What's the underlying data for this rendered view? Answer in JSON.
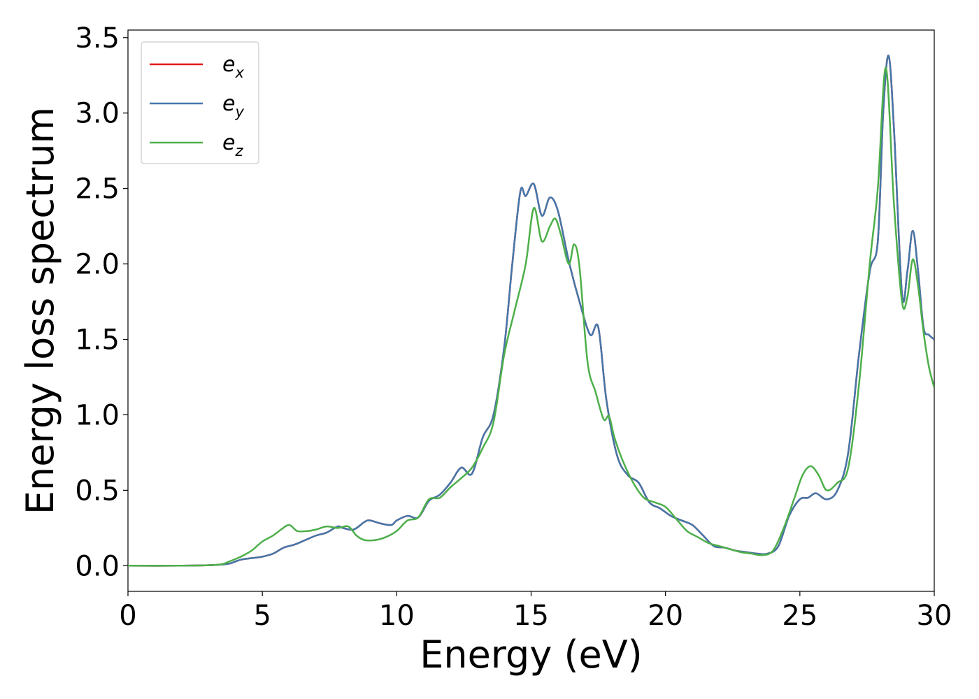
{
  "chart_data": {
    "type": "line",
    "title": "",
    "xlabel": "Energy (eV)",
    "ylabel": "Energy loss spectrum",
    "xlim": [
      0,
      30
    ],
    "ylim": [
      -0.17,
      3.55
    ],
    "xticks": [
      0,
      5,
      10,
      15,
      20,
      25,
      30
    ],
    "yticks": [
      0.0,
      0.5,
      1.0,
      1.5,
      2.0,
      2.5,
      3.0,
      3.5
    ],
    "xtick_labels": [
      "0",
      "5",
      "10",
      "15",
      "20",
      "25",
      "30"
    ],
    "ytick_labels": [
      "0.0",
      "0.5",
      "1.0",
      "1.5",
      "2.0",
      "2.5",
      "3.0",
      "3.5"
    ],
    "grid": false,
    "legend_position": "upper-left",
    "series": [
      {
        "name": "e",
        "subscript": "x",
        "color": "#e41a1c",
        "x": [
          0,
          2,
          3,
          3.5,
          3.8,
          4.2,
          4.6,
          5.0,
          5.4,
          5.8,
          6.2,
          6.6,
          7.0,
          7.4,
          7.8,
          8.0,
          8.4,
          8.8,
          9.0,
          9.4,
          9.8,
          10.0,
          10.4,
          10.8,
          11.2,
          11.6,
          12.0,
          12.4,
          12.8,
          13.2,
          13.6,
          14.0,
          14.3,
          14.6,
          14.8,
          15.1,
          15.4,
          15.7,
          16.0,
          16.4,
          16.8,
          17.2,
          17.5,
          17.8,
          18.2,
          18.6,
          19.0,
          19.4,
          19.8,
          20.2,
          20.6,
          21.0,
          21.4,
          21.8,
          22.2,
          22.6,
          23.0,
          23.4,
          23.8,
          24.2,
          24.6,
          25.0,
          25.3,
          25.6,
          26.0,
          26.4,
          26.8,
          27.2,
          27.6,
          27.9,
          28.1,
          28.3,
          28.5,
          28.8,
          29.0,
          29.2,
          29.4,
          29.6,
          29.8,
          30.0
        ],
        "values": [
          0.0,
          0.0,
          0.003,
          0.008,
          0.015,
          0.04,
          0.05,
          0.06,
          0.08,
          0.12,
          0.14,
          0.17,
          0.2,
          0.22,
          0.26,
          0.25,
          0.24,
          0.29,
          0.3,
          0.28,
          0.27,
          0.3,
          0.33,
          0.32,
          0.43,
          0.47,
          0.55,
          0.65,
          0.61,
          0.85,
          1.0,
          1.45,
          2.0,
          2.48,
          2.45,
          2.53,
          2.32,
          2.44,
          2.35,
          2.02,
          1.75,
          1.53,
          1.58,
          1.1,
          0.73,
          0.6,
          0.55,
          0.42,
          0.38,
          0.33,
          0.3,
          0.27,
          0.2,
          0.13,
          0.12,
          0.1,
          0.09,
          0.08,
          0.08,
          0.13,
          0.33,
          0.44,
          0.45,
          0.48,
          0.44,
          0.5,
          0.75,
          1.4,
          1.95,
          2.15,
          3.0,
          3.38,
          2.9,
          1.8,
          1.95,
          2.22,
          1.95,
          1.58,
          1.53,
          1.5
        ]
      },
      {
        "name": "e",
        "subscript": "y",
        "color": "#4477aa",
        "x": [
          0,
          2,
          3,
          3.5,
          3.8,
          4.2,
          4.6,
          5.0,
          5.4,
          5.8,
          6.2,
          6.6,
          7.0,
          7.4,
          7.8,
          8.0,
          8.4,
          8.8,
          9.0,
          9.4,
          9.8,
          10.0,
          10.4,
          10.8,
          11.2,
          11.6,
          12.0,
          12.4,
          12.8,
          13.2,
          13.6,
          14.0,
          14.3,
          14.6,
          14.8,
          15.1,
          15.4,
          15.7,
          16.0,
          16.4,
          16.8,
          17.2,
          17.5,
          17.8,
          18.2,
          18.6,
          19.0,
          19.4,
          19.8,
          20.2,
          20.6,
          21.0,
          21.4,
          21.8,
          22.2,
          22.6,
          23.0,
          23.4,
          23.8,
          24.2,
          24.6,
          25.0,
          25.3,
          25.6,
          26.0,
          26.4,
          26.8,
          27.2,
          27.6,
          27.9,
          28.1,
          28.3,
          28.5,
          28.8,
          29.0,
          29.2,
          29.4,
          29.6,
          29.8,
          30.0
        ],
        "values": [
          0.0,
          0.0,
          0.003,
          0.008,
          0.015,
          0.04,
          0.05,
          0.06,
          0.08,
          0.12,
          0.14,
          0.17,
          0.2,
          0.22,
          0.26,
          0.25,
          0.24,
          0.29,
          0.3,
          0.28,
          0.27,
          0.3,
          0.33,
          0.32,
          0.43,
          0.47,
          0.55,
          0.65,
          0.61,
          0.85,
          1.0,
          1.45,
          2.0,
          2.48,
          2.45,
          2.53,
          2.32,
          2.44,
          2.35,
          2.02,
          1.75,
          1.53,
          1.58,
          1.1,
          0.73,
          0.6,
          0.55,
          0.42,
          0.38,
          0.33,
          0.3,
          0.27,
          0.2,
          0.13,
          0.12,
          0.1,
          0.09,
          0.08,
          0.08,
          0.13,
          0.33,
          0.44,
          0.45,
          0.48,
          0.44,
          0.5,
          0.75,
          1.4,
          1.95,
          2.15,
          3.0,
          3.38,
          2.9,
          1.8,
          1.95,
          2.22,
          1.95,
          1.58,
          1.53,
          1.5
        ]
      },
      {
        "name": "e",
        "subscript": "z",
        "color": "#4daf4a",
        "x": [
          0,
          2,
          3,
          3.5,
          3.8,
          4.2,
          4.6,
          5.0,
          5.4,
          5.7,
          6.0,
          6.3,
          6.7,
          7.0,
          7.4,
          7.8,
          8.2,
          8.5,
          8.8,
          9.2,
          9.6,
          10.0,
          10.4,
          10.8,
          11.2,
          11.6,
          12.0,
          12.4,
          12.8,
          13.2,
          13.6,
          14.0,
          14.4,
          14.8,
          15.1,
          15.4,
          15.7,
          15.9,
          16.1,
          16.4,
          16.6,
          16.8,
          17.1,
          17.4,
          17.7,
          17.9,
          18.1,
          18.4,
          18.8,
          19.2,
          19.6,
          20.0,
          20.4,
          20.8,
          21.2,
          21.6,
          22.0,
          22.4,
          22.8,
          23.2,
          23.6,
          24.0,
          24.4,
          24.8,
          25.1,
          25.4,
          25.7,
          26.0,
          26.4,
          26.8,
          27.2,
          27.6,
          27.9,
          28.2,
          28.5,
          28.8,
          29.0,
          29.2,
          29.4,
          29.6,
          29.8,
          30.0
        ],
        "values": [
          0.0,
          0.0,
          0.003,
          0.01,
          0.03,
          0.06,
          0.1,
          0.16,
          0.2,
          0.24,
          0.27,
          0.23,
          0.23,
          0.24,
          0.26,
          0.25,
          0.26,
          0.2,
          0.17,
          0.17,
          0.19,
          0.23,
          0.3,
          0.32,
          0.44,
          0.45,
          0.52,
          0.58,
          0.65,
          0.78,
          0.95,
          1.4,
          1.7,
          2.0,
          2.37,
          2.15,
          2.25,
          2.3,
          2.2,
          2.0,
          2.13,
          1.98,
          1.35,
          1.15,
          0.97,
          0.99,
          0.85,
          0.7,
          0.55,
          0.45,
          0.42,
          0.39,
          0.31,
          0.23,
          0.19,
          0.15,
          0.13,
          0.11,
          0.09,
          0.08,
          0.07,
          0.1,
          0.25,
          0.45,
          0.6,
          0.66,
          0.6,
          0.5,
          0.55,
          0.65,
          1.2,
          2.0,
          2.5,
          3.3,
          2.4,
          1.75,
          1.78,
          2.03,
          1.85,
          1.55,
          1.32,
          1.18
        ]
      }
    ]
  }
}
